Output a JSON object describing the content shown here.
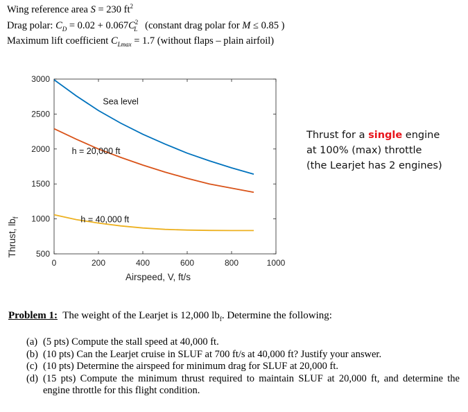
{
  "header": {
    "wing_area_prefix": "Wing reference area",
    "wing_area_symbol": "S",
    "wing_area_value": " = 230 ft",
    "wing_area_exp": "2",
    "drag_polar_prefix": "Drag polar:",
    "drag_polar_C": "C",
    "drag_polar_D": "D",
    "drag_polar_eq": " = 0.02 + 0.067",
    "drag_polar_CL": "C",
    "drag_polar_L": "L",
    "drag_polar_exp": "2",
    "drag_polar_note": "(constant drag polar for",
    "drag_polar_M": "M",
    "drag_polar_cond": " ≤ 0.85 )",
    "clmax_prefix": "Maximum lift coefficient",
    "clmax_C": "C",
    "clmax_sub": "Lmax",
    "clmax_value": " = 1.7 (without flaps – plain airfoil)"
  },
  "chart_data": {
    "type": "line",
    "xlabel": "Airspeed, V, ft/s",
    "ylabel": "Thrust, lbf",
    "xlim": [
      0,
      1000
    ],
    "ylim": [
      500,
      3000
    ],
    "xticks": [
      0,
      200,
      400,
      600,
      800,
      1000
    ],
    "yticks": [
      500,
      1000,
      1500,
      2000,
      2500,
      3000
    ],
    "series": [
      {
        "name": "Sea level",
        "color": "#0072bd",
        "x": [
          0,
          100,
          200,
          300,
          400,
          500,
          600,
          700,
          800,
          900
        ],
        "y": [
          2990,
          2760,
          2550,
          2370,
          2210,
          2070,
          1940,
          1830,
          1730,
          1640
        ]
      },
      {
        "name": "h = 20,000 ft",
        "color": "#d95319",
        "x": [
          0,
          100,
          200,
          300,
          400,
          500,
          600,
          700,
          800,
          900
        ],
        "y": [
          2290,
          2140,
          2000,
          1880,
          1770,
          1670,
          1580,
          1500,
          1440,
          1380
        ]
      },
      {
        "name": "h = 40,000 ft",
        "color": "#edb120",
        "x": [
          0,
          100,
          200,
          300,
          400,
          500,
          600,
          700,
          800,
          900
        ],
        "y": [
          1060,
          990,
          940,
          900,
          870,
          850,
          840,
          835,
          833,
          833
        ]
      }
    ],
    "annotations": [
      "Sea level",
      "h = 20,000 ft",
      "h = 40,000 ft"
    ]
  },
  "thrust_note": {
    "line1_a": "Thrust for a ",
    "line1_red": "single",
    "line1_b": " engine",
    "line2": "at 100% (max) throttle",
    "line3": "(the Learjet has 2 engines)"
  },
  "problem": {
    "title": "Problem 1:",
    "text": "The weight of the Learjet is 12,000 lb",
    "text_sub": "f",
    "text_end": ". Determine the following:",
    "parts": [
      {
        "label": "(a)",
        "text": "(5 pts) Compute the stall speed at 40,000 ft."
      },
      {
        "label": "(b)",
        "text": "(10 pts) Can the Learjet cruise in SLUF at 700 ft/s at 40,000 ft? Justify your answer."
      },
      {
        "label": "(c)",
        "text": "(10 pts) Determine the airspeed for minimum drag for SLUF at 20,000 ft."
      },
      {
        "label": "(d)",
        "text": "(15 pts) Compute the minimum thrust required to maintain SLUF at 20,000 ft, and determine the engine throttle for this flight condition."
      }
    ]
  }
}
